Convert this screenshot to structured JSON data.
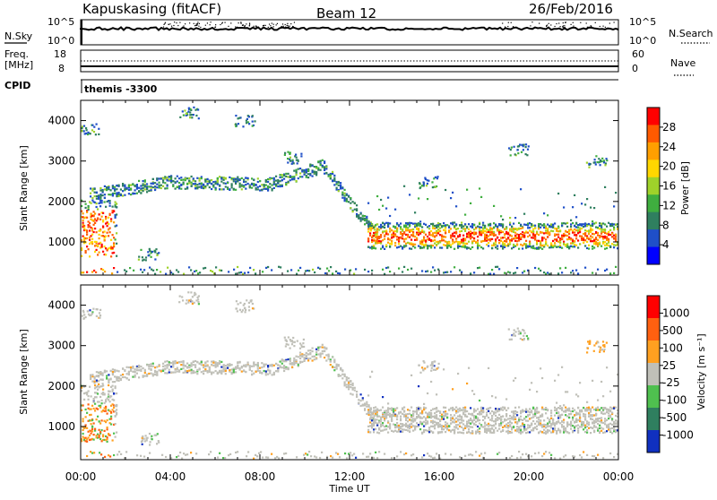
{
  "header": {
    "station": "Kapuskasing (fitACF)",
    "beam": "Beam 12",
    "date": "26/Feb/2016"
  },
  "strip": {
    "nsky_label": "N.Sky",
    "nsky_ticks": [
      "10^5",
      "10^0"
    ],
    "nsearch_label": "N.Search",
    "nsearch_ticks": [
      "10^5",
      "10^0"
    ],
    "freq_label_1": "Freq.",
    "freq_label_2": "[MHz]",
    "freq_ticks": [
      "18",
      "8"
    ],
    "nave_label": "Nave",
    "nave_ticks": [
      "60",
      "0"
    ],
    "cpid_label": "CPID",
    "cpid_value": "themis -3300"
  },
  "chart_data": [
    {
      "type": "heatmap",
      "name": "power-panel",
      "ylabel": "Slant Range [km]",
      "xlabel": "Time UT",
      "x_ticks": [
        "00:00",
        "04:00",
        "08:00",
        "12:00",
        "16:00",
        "20:00",
        "00:00"
      ],
      "x_range_hours": [
        0,
        24
      ],
      "y_ticks": [
        1000,
        2000,
        3000,
        4000
      ],
      "y_range_km": [
        180,
        4500
      ],
      "colorbar_label": "Power [dB]",
      "colorbar_ticks": [
        "28",
        "24",
        "20",
        "16",
        "12",
        "8",
        "4"
      ],
      "colors": [
        "#0000ff",
        "#1f4fc8",
        "#2f7f5f",
        "#3fae3f",
        "#9fd22a",
        "#ffd700",
        "#ff9f00",
        "#ff5a00",
        "#ff0000"
      ]
    },
    {
      "type": "heatmap",
      "name": "velocity-panel",
      "ylabel": "Slant Range [km]",
      "xlabel": "Time UT",
      "x_ticks": [
        "00:00",
        "04:00",
        "08:00",
        "12:00",
        "16:00",
        "20:00",
        "00:00"
      ],
      "x_range_hours": [
        0,
        24
      ],
      "y_ticks": [
        1000,
        2000,
        3000,
        4000
      ],
      "y_range_km": [
        180,
        4500
      ],
      "colorbar_label": "Velocity [m s⁻¹]",
      "colorbar_ticks": [
        "1000",
        "500",
        "100",
        "25",
        "-25",
        "-100",
        "-500",
        "-1000"
      ],
      "colors": [
        "#1030c0",
        "#2f7f5f",
        "#4fc04f",
        "#c0c0b8",
        "#ffa020",
        "#ff6010",
        "#ff0000"
      ]
    }
  ],
  "features": [
    {
      "name": "tilted-band-upper",
      "t": [
        0.5,
        4.0,
        8.5,
        10.8,
        12.0,
        13.0
      ],
      "r": [
        2200,
        2500,
        2450,
        2900,
        2000,
        1300
      ]
    },
    {
      "name": "main-evening-band",
      "t": [
        12.8,
        24.0
      ],
      "r": [
        1150,
        1100
      ]
    },
    {
      "name": "near-range-band",
      "t": [
        0.0,
        24.0
      ],
      "r": [
        350,
        350
      ]
    }
  ]
}
